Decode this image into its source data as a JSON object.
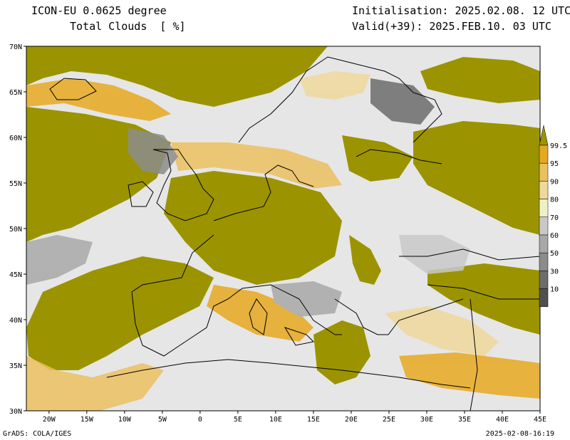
{
  "header": {
    "model": "ICON-EU 0.0625 degree",
    "field": "Total Clouds  [ %]",
    "init": "Initialisation: 2025.02.08. 12 UTC",
    "valid": "Valid(+39): 2025.FEB.10. 03 UTC"
  },
  "footer": {
    "left": "GrADS: COLA/IGES",
    "right": "2025-02-08-16:19"
  },
  "map": {
    "lat_labels": [
      "70N",
      "65N",
      "60N",
      "55N",
      "50N",
      "45N",
      "40N",
      "35N",
      "30N"
    ],
    "lon_labels": [
      "20W",
      "15W",
      "10W",
      "5W",
      "0",
      "5E",
      "10E",
      "15E",
      "20E",
      "25E",
      "30E",
      "35E",
      "40E",
      "45E"
    ],
    "colors": {
      "overcast": "#9b9400",
      "background": "#e6e6e6",
      "coastline": "#000000"
    }
  },
  "colorbar": {
    "levels": [
      "99.5",
      "95",
      "90",
      "80",
      "70",
      "60",
      "50",
      "30",
      "10"
    ],
    "colors": [
      "#9b9400",
      "#e6a820",
      "#ebc060",
      "#efd89c",
      "#f0f0c8",
      "#c8c8c8",
      "#a8a8a8",
      "#8c8c8c",
      "#6c6c6c",
      "#505050"
    ]
  }
}
